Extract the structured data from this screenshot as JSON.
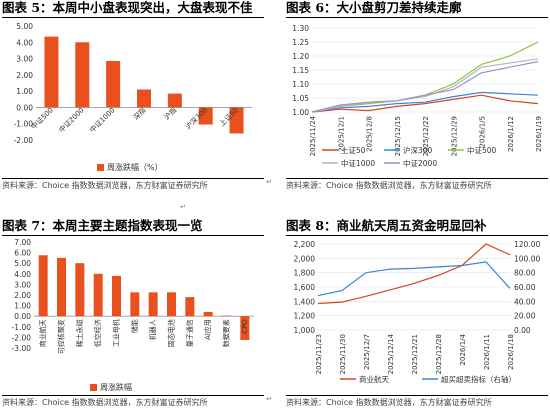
{
  "panels": {
    "p5": {
      "title": "图表 5：本周中小盘表现突出，大盘表现不佳",
      "source": "资料来源：Choice 指数数据浏览器，东方财富证券研究所"
    },
    "p6": {
      "title": "图表 6：大小盘剪刀差持续走廓",
      "source": "资料来源：Choice 指数数据浏览器，东方财富证券研究所"
    },
    "p7": {
      "title": "图表 7：本周主要主题指数表现一览",
      "source": "资料来源：Choice 指数数据浏览器，东方财富证券研究所"
    },
    "p8": {
      "title": "图表 8：商业航天周五资金明显回补",
      "source": "资料来源：Choice 指数数据浏览器，东方财富证券研究所"
    }
  },
  "glyphs": {
    "return_mark": "↵"
  },
  "colors": {
    "orange": "#e8511d",
    "blue": "#3b84d6",
    "green": "#8cc43c",
    "purple": "#9f90c8",
    "grey": "#b7b7b7",
    "dark_orange": "#d9451a"
  },
  "chart_data": [
    {
      "type": "bar",
      "categories": [
        "中证500",
        "中证2000",
        "中证1000",
        "深指",
        "沪指",
        "沪深300",
        "上证50"
      ],
      "values": [
        4.35,
        4.0,
        2.85,
        1.1,
        0.85,
        -1.05,
        -1.6
      ],
      "ylim": [
        -2.0,
        5.0
      ],
      "yticks": [
        "5.00",
        "4.00",
        "3.00",
        "2.00",
        "1.00",
        "0.00",
        "-1.00",
        "-2.00"
      ],
      "legend": [
        "周涨跌幅（%）"
      ],
      "legend_position": "bottom"
    },
    {
      "type": "line",
      "x": [
        "2025/11/24",
        "2025/12/1",
        "2025/12/8",
        "2025/12/15",
        "2025/12/22",
        "2025/12/29",
        "2026/1/5",
        "2026/1/12",
        "2026/1/19"
      ],
      "ylim": [
        1.0,
        1.3
      ],
      "yticks": [
        "1.30",
        "1.25",
        "1.20",
        "1.15",
        "1.10",
        "1.05",
        "1.00"
      ],
      "legend_position": "bottom",
      "series": [
        {
          "name": "上证50",
          "values": [
            1.0,
            1.01,
            1.005,
            1.02,
            1.03,
            1.045,
            1.06,
            1.04,
            1.03
          ]
        },
        {
          "name": "沪深300",
          "values": [
            1.0,
            1.015,
            1.02,
            1.03,
            1.035,
            1.055,
            1.07,
            1.065,
            1.06
          ]
        },
        {
          "name": "中证500",
          "values": [
            1.0,
            1.02,
            1.03,
            1.04,
            1.06,
            1.1,
            1.17,
            1.2,
            1.25
          ]
        },
        {
          "name": "中证1000",
          "values": [
            1.0,
            1.02,
            1.035,
            1.04,
            1.055,
            1.09,
            1.16,
            1.175,
            1.19
          ]
        },
        {
          "name": "中证2000",
          "values": [
            1.0,
            1.025,
            1.035,
            1.04,
            1.06,
            1.08,
            1.14,
            1.16,
            1.18
          ]
        }
      ]
    },
    {
      "type": "bar",
      "categories": [
        "商业航天",
        "可控核聚变",
        "稀土永磁",
        "低空经济",
        "工业母机",
        "储能",
        "机器人",
        "固态电池",
        "量子通信",
        "AI应用",
        "数据要素",
        "CPO"
      ],
      "values": [
        5.75,
        5.5,
        5.0,
        4.0,
        3.8,
        2.25,
        2.25,
        2.25,
        1.8,
        0.4,
        0.05,
        -2.25
      ],
      "ylim": [
        -3.0,
        7.0
      ],
      "yticks": [
        "7.00",
        "6.00",
        "5.00",
        "4.00",
        "3.00",
        "2.00",
        "1.00",
        "0.00",
        "-1.00",
        "-2.00",
        "-3.00"
      ],
      "legend": [
        "周涨跌幅"
      ],
      "legend_position": "bottom"
    },
    {
      "type": "line",
      "x": [
        "2025/11/23",
        "2025/11/30",
        "2025/12/7",
        "2025/12/14",
        "2025/12/21",
        "2025/12/28",
        "2026/1/4",
        "2026/1/11",
        "2026/1/18"
      ],
      "ylim": [
        1000,
        2200
      ],
      "yticks": [
        "2,200",
        "2,000",
        "1,800",
        "1,600",
        "1,400",
        "1,200",
        "1,000"
      ],
      "y2lim": [
        0,
        120
      ],
      "y2ticks": [
        "120.00",
        "100.00",
        "80.00",
        "60.00",
        "40.00",
        "20.00",
        "0.00"
      ],
      "legend_position": "bottom",
      "series": [
        {
          "name": "商业航天",
          "axis": "left",
          "values": [
            1370,
            1390,
            1470,
            1560,
            1650,
            1760,
            1900,
            2200,
            2050
          ]
        },
        {
          "name": "超买超卖指标（右轴）",
          "axis": "right",
          "values": [
            48,
            55,
            80,
            85,
            86,
            88,
            90,
            95,
            58
          ]
        }
      ]
    }
  ]
}
